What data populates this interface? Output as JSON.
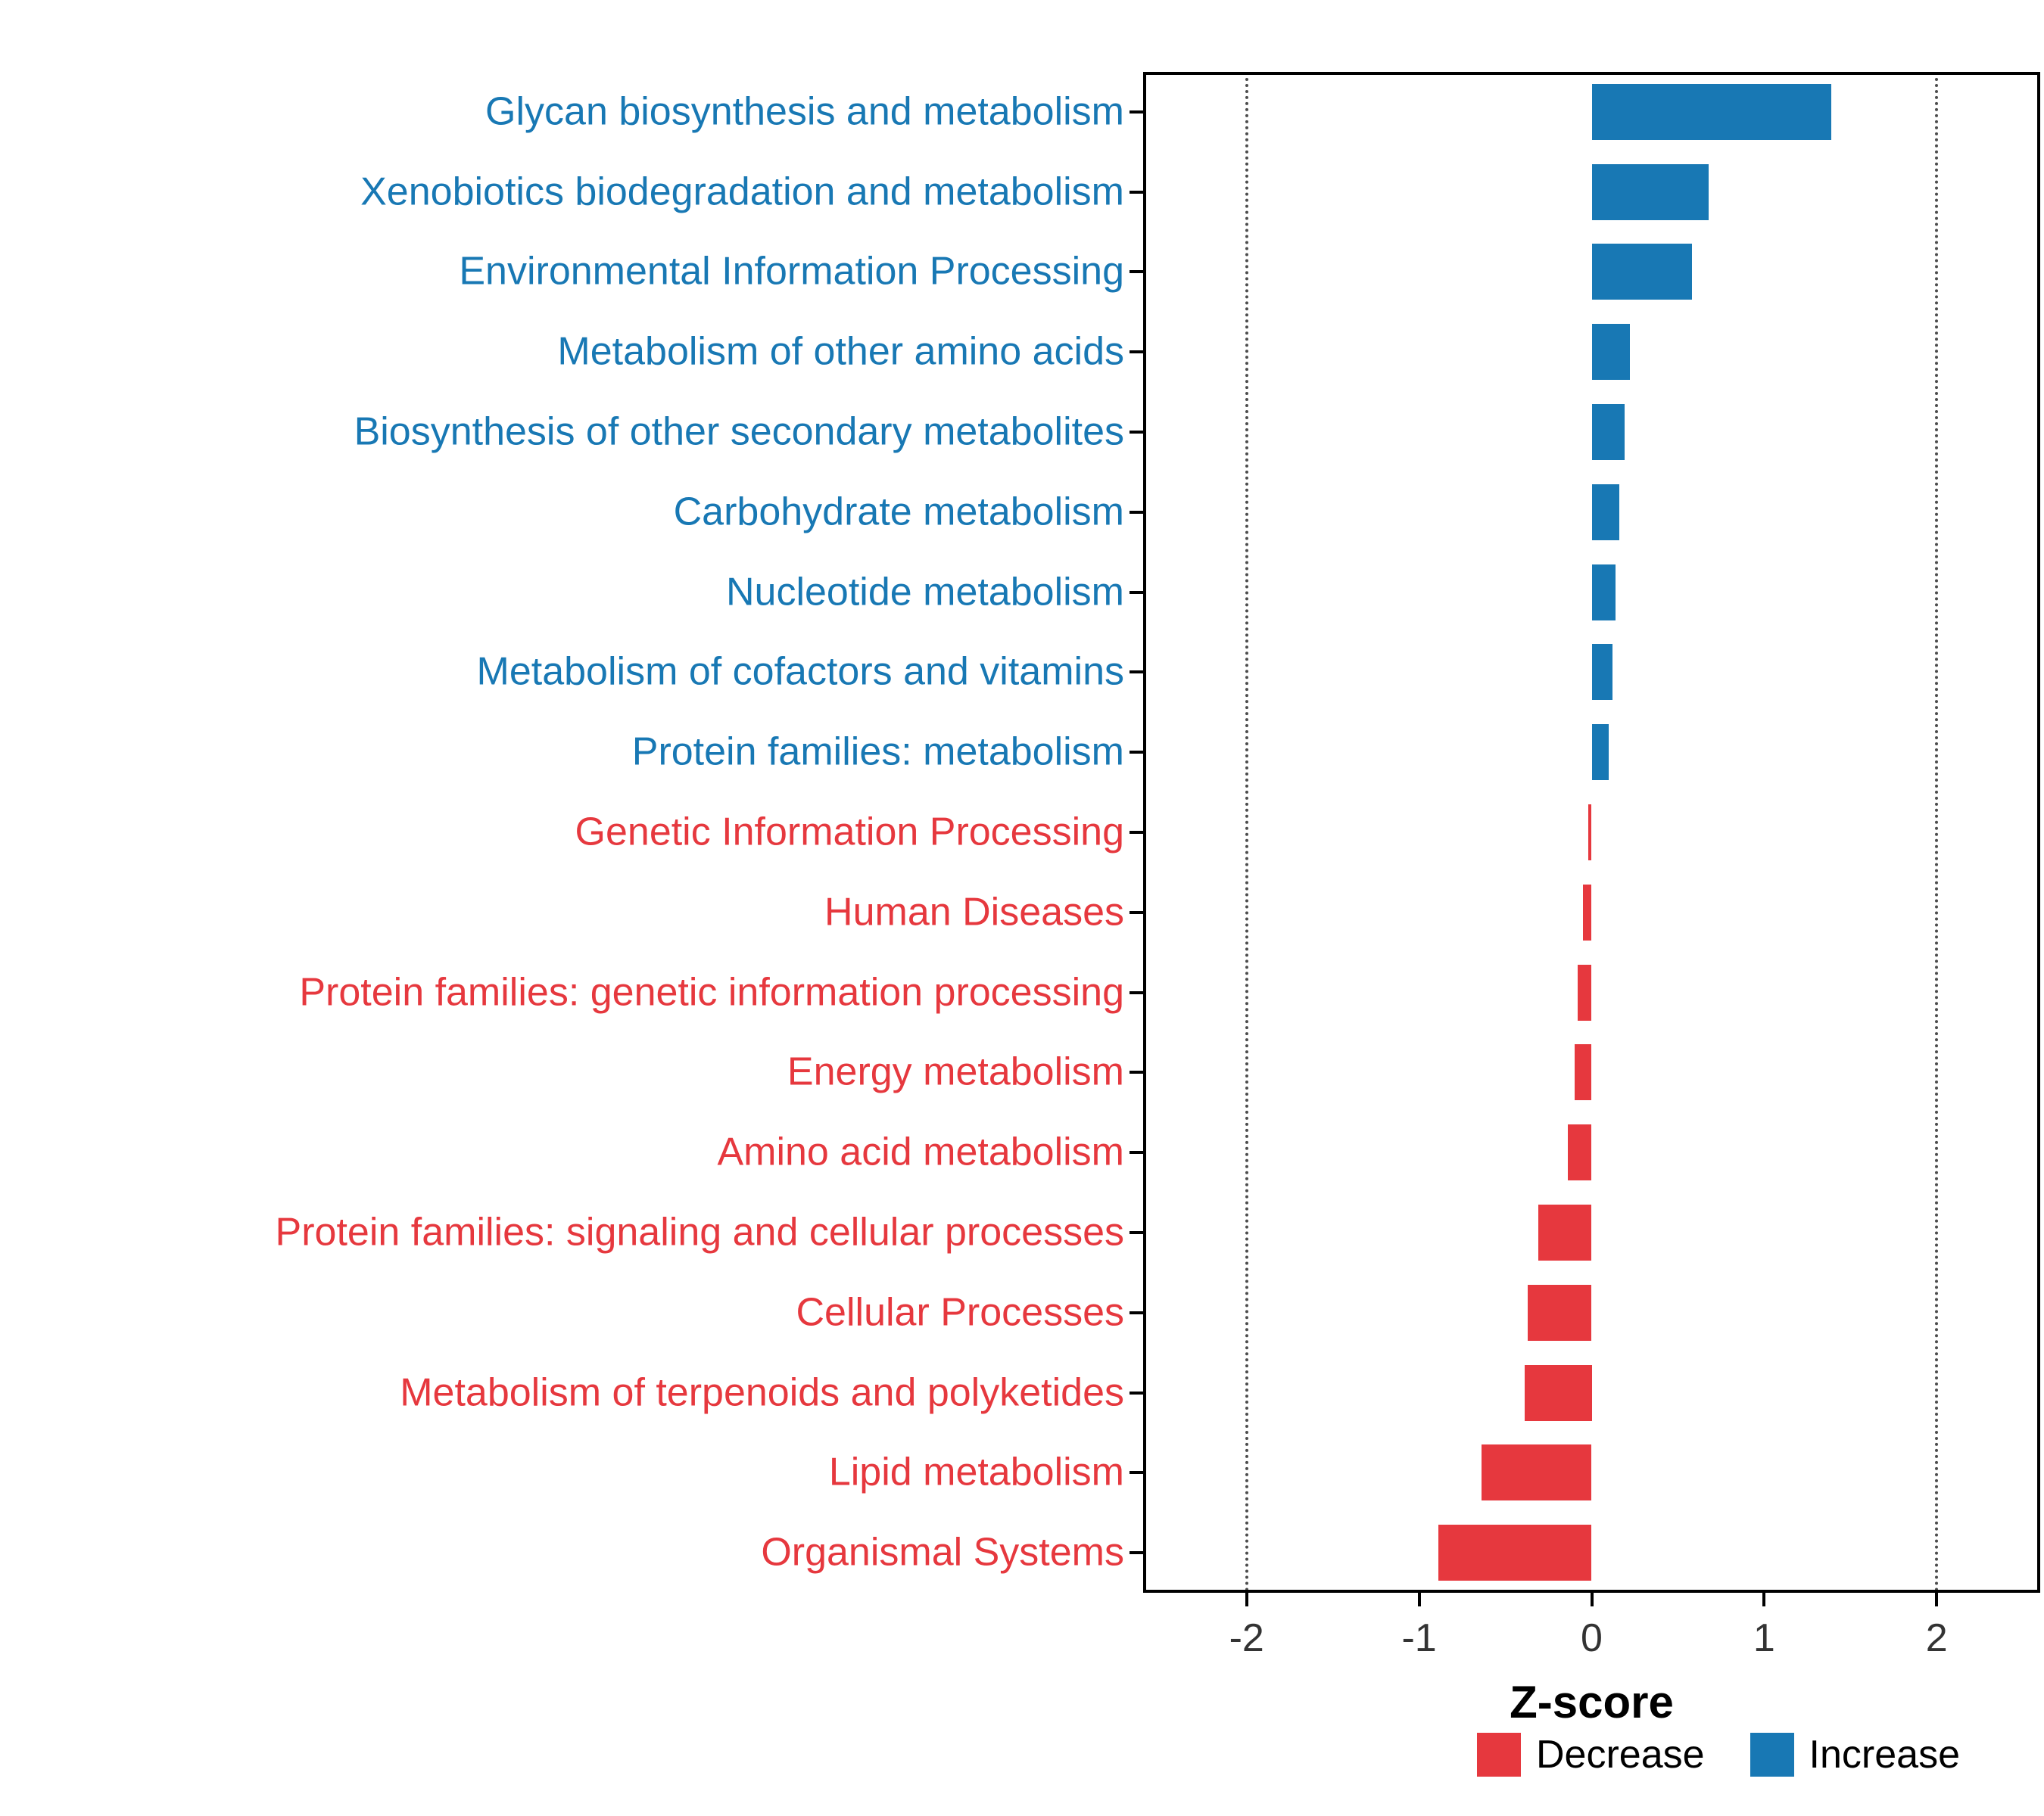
{
  "chart_data": {
    "type": "bar",
    "orientation": "horizontal",
    "title": "",
    "xlabel": "Z-score",
    "ylabel": "",
    "xlim": [
      -2.6,
      2.6
    ],
    "x_ticks": [
      -2,
      -1,
      0,
      1,
      2
    ],
    "x_tick_labels": [
      "-2",
      "-1",
      "0",
      "1",
      "2"
    ],
    "gridlines_x": [
      -2,
      2
    ],
    "grid_style": "dotted",
    "categories": [
      "Glycan biosynthesis and metabolism",
      "Xenobiotics biodegradation and metabolism",
      "Environmental Information Processing",
      "Metabolism of other amino acids",
      "Biosynthesis of other secondary metabolites",
      "Carbohydrate metabolism",
      "Nucleotide metabolism",
      "Metabolism of cofactors and vitamins",
      "Protein families: metabolism",
      "Genetic Information Processing",
      "Human Diseases",
      "Protein families: genetic information processing",
      "Energy metabolism",
      "Amino acid metabolism",
      "Protein families: signaling and cellular processes",
      "Cellular Processes",
      "Metabolism of terpenoids and polyketides",
      "Lipid metabolism",
      "Organismal Systems"
    ],
    "values": [
      1.39,
      0.68,
      0.58,
      0.22,
      0.19,
      0.16,
      0.14,
      0.12,
      0.1,
      -0.02,
      -0.05,
      -0.08,
      -0.1,
      -0.14,
      -0.31,
      -0.37,
      -0.39,
      -0.64,
      -0.89
    ],
    "colors": {
      "increase": "#1878B4",
      "decrease": "#E6383E",
      "gridline": "#4d4d4d",
      "panel_border": "#000000"
    },
    "legend_position": "bottom",
    "legend": [
      {
        "label": "Decrease",
        "color_key": "decrease"
      },
      {
        "label": "Increase",
        "color_key": "increase"
      }
    ]
  }
}
